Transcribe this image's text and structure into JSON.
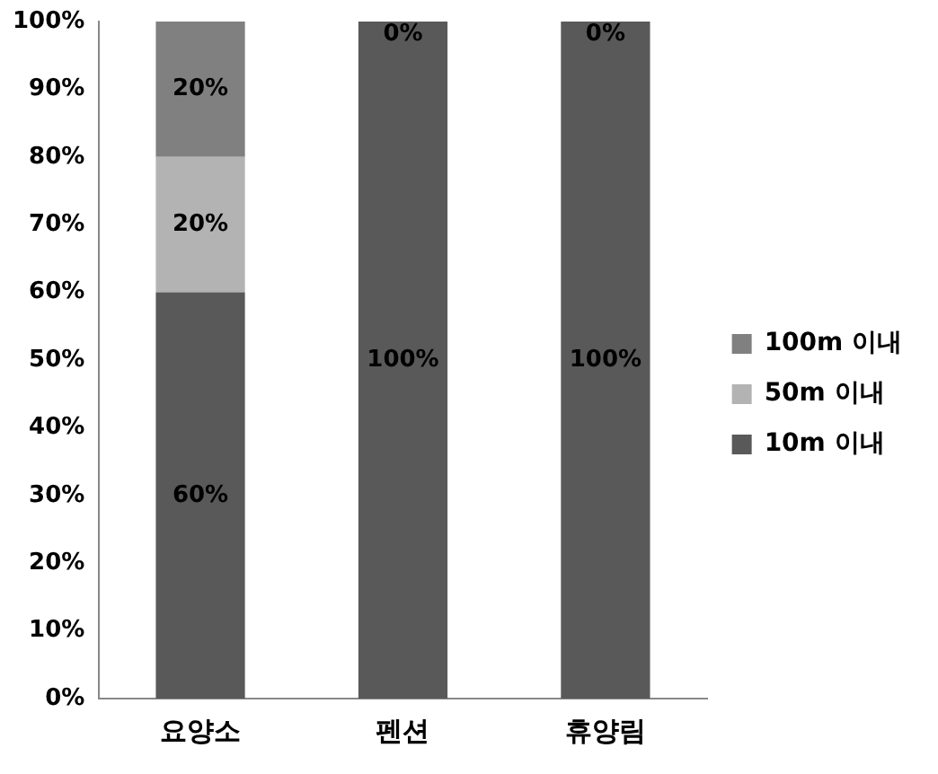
{
  "chart_data": {
    "type": "bar",
    "stacked": true,
    "categories": [
      "요양소",
      "펜션",
      "휴양림"
    ],
    "series": [
      {
        "name": "10m 이내",
        "color": "#595959",
        "values": [
          60,
          100,
          100
        ],
        "value_labels": [
          "60%",
          "100%",
          "100%"
        ]
      },
      {
        "name": "50m 이내",
        "color": "#b3b3b3",
        "values": [
          20,
          0,
          0
        ],
        "value_labels": [
          "20%",
          null,
          null
        ]
      },
      {
        "name": "100m 이내",
        "color": "#808080",
        "values": [
          20,
          0,
          0
        ],
        "value_labels": [
          "20%",
          "0%",
          "0%"
        ]
      }
    ],
    "ylim": [
      0,
      100
    ],
    "yticks": [
      {
        "value": 0,
        "label": "0%"
      },
      {
        "value": 10,
        "label": "10%"
      },
      {
        "value": 20,
        "label": "20%"
      },
      {
        "value": 30,
        "label": "30%"
      },
      {
        "value": 40,
        "label": "40%"
      },
      {
        "value": 50,
        "label": "50%"
      },
      {
        "value": 60,
        "label": "60%"
      },
      {
        "value": 70,
        "label": "70%"
      },
      {
        "value": 80,
        "label": "80%"
      },
      {
        "value": 90,
        "label": "90%"
      },
      {
        "value": 100,
        "label": "100%"
      }
    ],
    "grid": false,
    "legend": "right"
  }
}
